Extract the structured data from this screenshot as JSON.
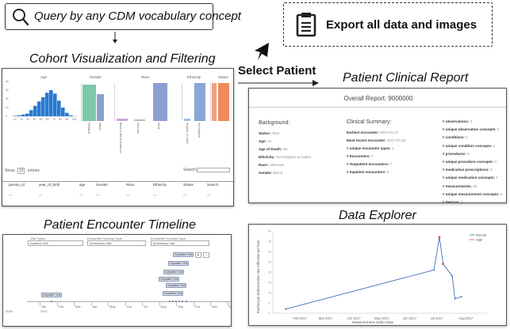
{
  "query": {
    "label": "Query by any CDM vocabulary concept"
  },
  "export": {
    "label": "Export all data and images"
  },
  "select_patient": "Select Patient",
  "cohort": {
    "title": "Cohort Visualization and Filtering",
    "charts": {
      "age": {
        "title": "Age",
        "bars": [
          0.5,
          1,
          2,
          3,
          7,
          12,
          17,
          22,
          27,
          30,
          26,
          18,
          10,
          4,
          1
        ],
        "ticks": [
          "10",
          "20",
          "30",
          "40",
          "50",
          "60",
          "70",
          "80",
          "90",
          "100"
        ],
        "yticks": [
          "40",
          "30",
          "20",
          "10",
          "0"
        ]
      },
      "gender": {
        "title": "Gender",
        "categories": [
          "FEMALE",
          "MALE"
        ],
        "values": [
          90,
          78
        ],
        "colors": [
          "#7fc8a9",
          "#8aa0cc"
        ]
      },
      "race": {
        "title": "Race",
        "categories": [
          "Black or African American",
          "Unknown",
          "White"
        ],
        "values": [
          8,
          6,
          100
        ],
        "colors": [
          "#c9a6d6",
          "#bbbbbb",
          "#8e9fd1"
        ]
      },
      "ethnicity": {
        "title": "Ethnicity",
        "categories": [
          "Hispanic or Latino",
          "Not Hispanic"
        ],
        "values": [
          6,
          100
        ],
        "colors": [
          "#9fc2e9",
          "#8aa5d6"
        ]
      },
      "status": {
        "title": "Status",
        "categories": [
          "Alive",
          "Dead"
        ],
        "values": [
          100,
          100
        ],
        "colors": [
          "#f0a37c",
          "#f08a5d"
        ]
      }
    },
    "show": "Show",
    "entries": "entries",
    "show_count": "10",
    "search": "Search:",
    "columns": [
      "person_id",
      "year_of_birth",
      "age",
      "Gender",
      "Race",
      "Ethnicity",
      "Status",
      "Search"
    ],
    "filters": [
      "All",
      "All",
      "All",
      "All",
      "All",
      "All",
      "All",
      "All"
    ]
  },
  "encounter": {
    "title": "Patient Encounter Timeline",
    "filter_labels": [
      "Visit Types",
      "Encounter Concept Type",
      "Encounter Concept Type"
    ],
    "filter_values": [
      "Inpatient Visit",
      "Ambulatory Visit",
      "Ambulatory Visit"
    ],
    "boxes": [
      "Outpatient Visit",
      "Outpatient Visit",
      "Outpatient Visit",
      "Outpatient Visit",
      "Outpatient Visit",
      "Outpatient Visit",
      "Outpatient Visit"
    ],
    "months": [
      "Jan",
      "Feb",
      "Mar",
      "Apr",
      "May",
      "Jun",
      "Jul",
      "Aug",
      "Sep",
      "Oct",
      "Nov",
      "Dec"
    ],
    "year_left": "2016",
    "year_right": "2017",
    "buttons": [
      "+",
      "-"
    ]
  },
  "report": {
    "section_title": "Patient Clinical Report",
    "title": "Overall Report: 9000000",
    "background": {
      "heading": "Background:",
      "rows": [
        {
          "label": "Status:",
          "value": "Alive"
        },
        {
          "label": "Age:",
          "value": "21"
        },
        {
          "label": "Age of Death:",
          "value": "NA"
        },
        {
          "label": "Ethnicity:",
          "value": "Not Hispanic or Latino"
        },
        {
          "label": "Race:",
          "value": "Unknown"
        },
        {
          "label": "Gender:",
          "value": "MALE"
        }
      ]
    },
    "summary": {
      "heading": "Clinical Summary:",
      "rows": [
        {
          "label": "Earliest encounter:",
          "value": "2017-01-17"
        },
        {
          "label": "Most recent encounter:",
          "value": "2017-07-28"
        },
        {
          "label": "# unique encounter types:",
          "value": "1"
        },
        {
          "label": "# Encounters:",
          "value": "7"
        },
        {
          "label": "# Outpatient encounters:",
          "value": "7"
        },
        {
          "label": "# Inpatient encounters:",
          "value": "0"
        }
      ]
    },
    "counts": [
      {
        "label": "# observations:",
        "value": "3"
      },
      {
        "label": "# unique observation concepts:",
        "value": "3"
      },
      {
        "label": "# conditions:",
        "value": "5"
      },
      {
        "label": "# unique condition concepts:",
        "value": "4"
      },
      {
        "label": "# procedures:",
        "value": "0"
      },
      {
        "label": "# unique procedure concepts:",
        "value": "0"
      },
      {
        "label": "# medication prescriptions:",
        "value": "3"
      },
      {
        "label": "# unique medication concepts:",
        "value": "2"
      },
      {
        "label": "# measurements:",
        "value": "40"
      },
      {
        "label": "# unique measurement concepts:",
        "value": "6"
      },
      {
        "label": "# devices:",
        "value": "0"
      },
      {
        "label": "# unique device concepts:",
        "value": "0"
      }
    ]
  },
  "explorer": {
    "title": "Data Explorer",
    "legend": [
      {
        "label": "Normal",
        "color": "#2f5fb3"
      },
      {
        "label": "High",
        "color": "#d9534f"
      }
    ]
  },
  "chart_data": {
    "type": "line",
    "title": "",
    "xlabel": "Measurement Order Date",
    "ylabel": "Erythrocyte sedimentation rate millimeter per hour",
    "x_ticks": [
      "Feb 2017",
      "Mar 2017",
      "Apr 2017",
      "May 2017",
      "Jun 2017",
      "Jul 2017",
      "Aug 2017"
    ],
    "y_ticks": [
      "0",
      "5",
      "10",
      "15",
      "20",
      "25",
      "30",
      "35",
      "40"
    ],
    "ylim": [
      0,
      40
    ],
    "series": [
      {
        "name": "Normal",
        "color": "#2f5fb3",
        "x": [
          "2017-01-17",
          "2017-06-28",
          "2017-07-04",
          "2017-07-08",
          "2017-07-18",
          "2017-07-21",
          "2017-07-28"
        ],
        "y": [
          2,
          21,
          37,
          24,
          18,
          7,
          8
        ]
      },
      {
        "name": "High",
        "color": "#d9534f",
        "x": [
          "2017-07-04",
          "2017-07-08"
        ],
        "y": [
          37,
          24
        ]
      }
    ]
  }
}
